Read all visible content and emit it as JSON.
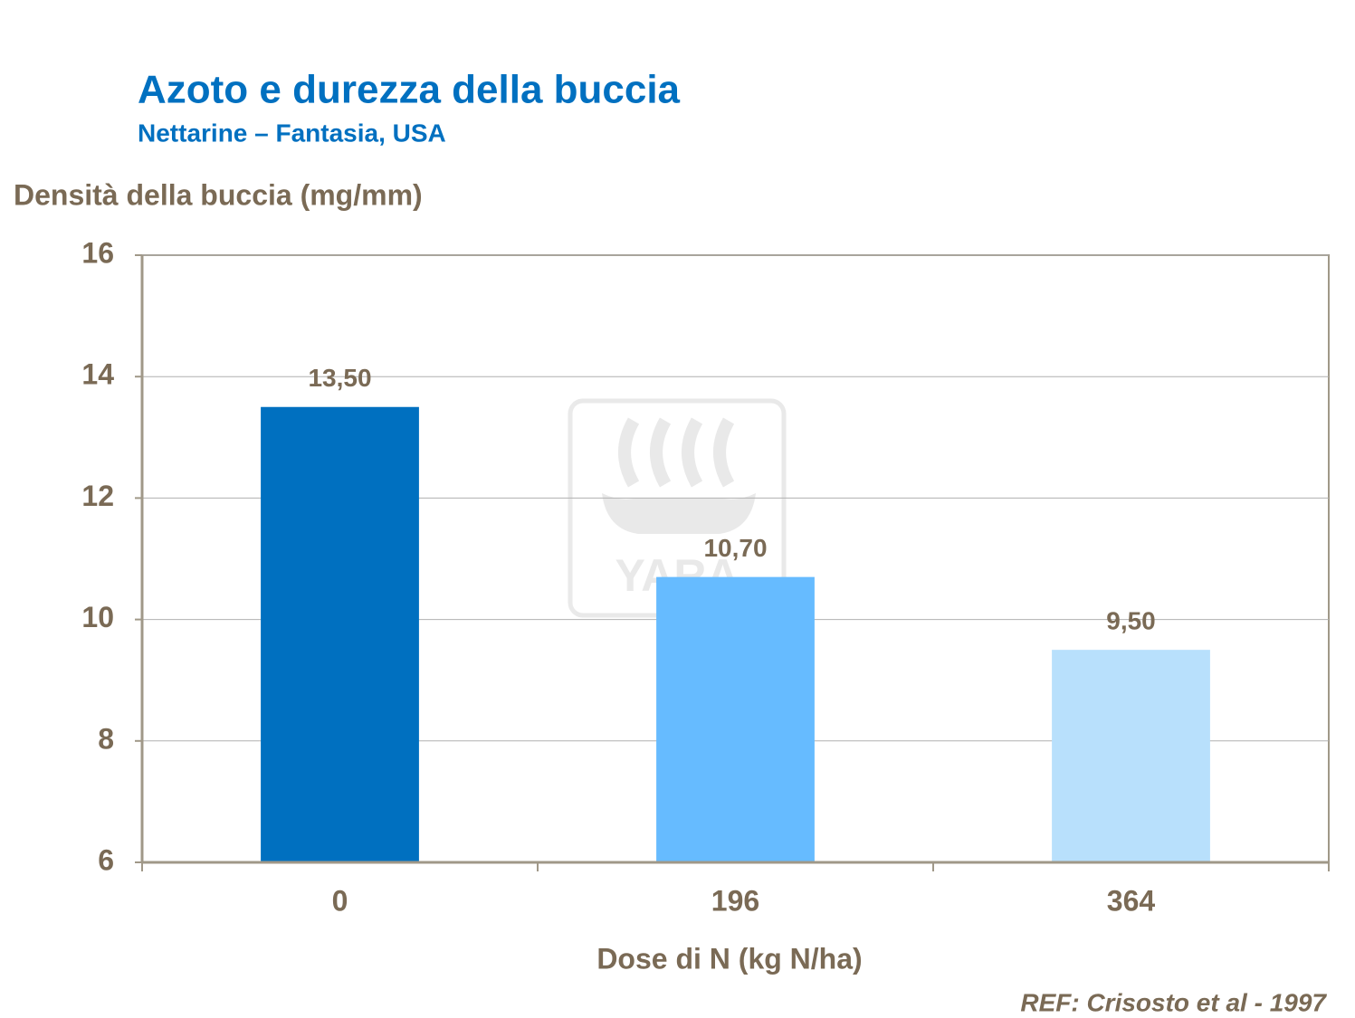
{
  "chart_data": {
    "type": "bar",
    "title": "Azoto e durezza della buccia",
    "subtitle": "Nettarine – Fantasia, USA",
    "y_label": "Densità della buccia (mg/mm)",
    "x_label": "Dose di N (kg N/ha)",
    "source": "REF: Crisosto et al - 1997",
    "watermark": "YARA",
    "categories": [
      "0",
      "196",
      "364"
    ],
    "values": [
      13.5,
      10.7,
      9.5
    ],
    "value_labels": [
      "13,50",
      "10,70",
      "9,50"
    ],
    "colors": [
      "#0070c0",
      "#66bbff",
      "#b8e0fc"
    ],
    "ylim": [
      6,
      16
    ],
    "yticks": [
      6,
      8,
      10,
      12,
      14,
      16
    ],
    "grid": true
  }
}
